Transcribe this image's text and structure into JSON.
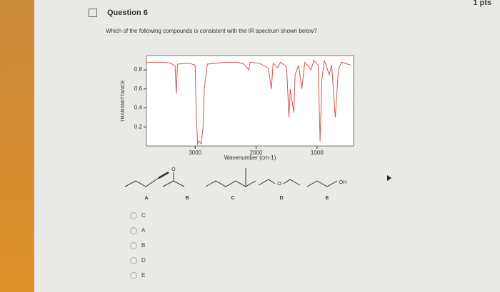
{
  "header": {
    "points": "1 pts",
    "title": "Question 6"
  },
  "question": "Which of the following compounds is consistent with the IR spectrum shown below?",
  "chart_data": {
    "type": "line",
    "ylabel": "TRANSMITTANCE",
    "xlabel": "Wavenumber (cm-1)",
    "x": [
      3800,
      3500,
      3400,
      3330,
      3310,
      3290,
      3100,
      3000,
      2980,
      2960,
      2930,
      2900,
      2870,
      2850,
      2800,
      2500,
      2300,
      2200,
      2120,
      2100,
      1950,
      1800,
      1750,
      1720,
      1650,
      1600,
      1500,
      1460,
      1440,
      1380,
      1360,
      1300,
      1250,
      1200,
      1100,
      1050,
      980,
      950,
      920,
      880,
      800,
      760,
      700,
      650,
      600,
      450
    ],
    "series": [
      {
        "color": "#d9534f",
        "values": [
          0.88,
          0.88,
          0.87,
          0.84,
          0.55,
          0.86,
          0.87,
          0.85,
          0.3,
          0.02,
          0.05,
          0.02,
          0.2,
          0.6,
          0.86,
          0.88,
          0.88,
          0.86,
          0.8,
          0.88,
          0.87,
          0.82,
          0.6,
          0.87,
          0.82,
          0.88,
          0.83,
          0.3,
          0.6,
          0.35,
          0.75,
          0.85,
          0.6,
          0.88,
          0.8,
          0.9,
          0.85,
          0.05,
          0.7,
          0.9,
          0.75,
          0.85,
          0.3,
          0.8,
          0.88,
          0.85
        ]
      }
    ],
    "xlim": [
      3800,
      400
    ],
    "ylim": [
      0,
      0.95
    ],
    "xticks": [
      3000,
      2000,
      1000
    ],
    "yticks": [
      0.2,
      0.4,
      0.6,
      0.8
    ]
  },
  "structures": [
    {
      "label": "A"
    },
    {
      "label": "B",
      "atom": "O"
    },
    {
      "label": "C"
    },
    {
      "label": "D",
      "atom": "O"
    },
    {
      "label": "E",
      "atom": "OH"
    }
  ],
  "options": [
    "C",
    "A",
    "B",
    "D",
    "E"
  ]
}
